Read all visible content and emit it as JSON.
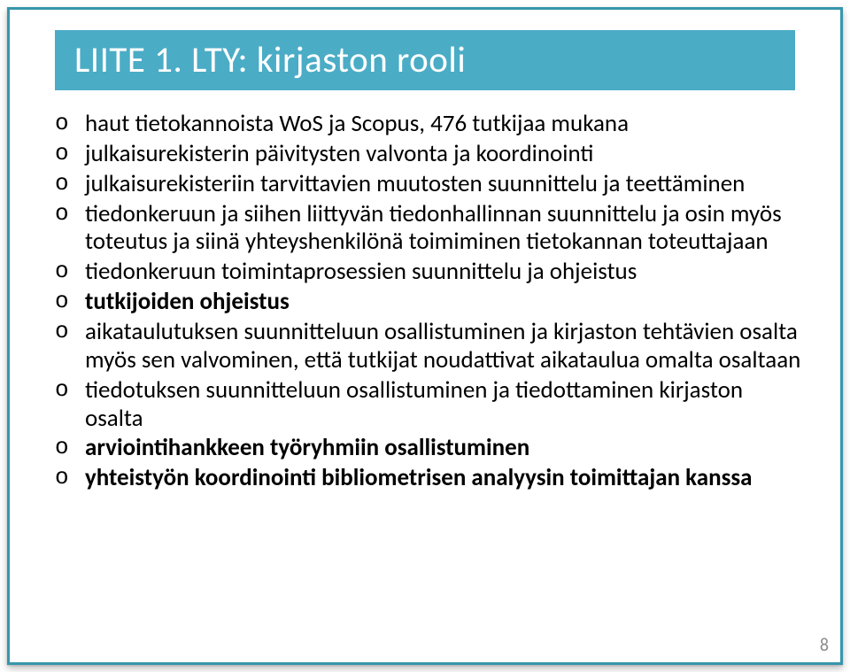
{
  "title": "LIITE 1. LTY: kirjaston rooli",
  "bullets": [
    {
      "text": "haut tietokannoista WoS ja Scopus, 476 tutkijaa mukana",
      "bold": false
    },
    {
      "text": "julkaisurekisterin päivitysten valvonta ja koordinointi",
      "bold": false
    },
    {
      "text": "julkaisurekisteriin tarvittavien muutosten suunnittelu ja teettäminen",
      "bold": false
    },
    {
      "text": "tiedonkeruun ja siihen liittyvän tiedonhallinnan suunnittelu ja osin myös toteutus ja siinä yhteyshenkilönä toimiminen tietokannan toteuttajaan",
      "bold": false
    },
    {
      "text": "tiedonkeruun toimintaprosessien suunnittelu ja ohjeistus",
      "bold": false
    },
    {
      "text": "tutkijoiden ohjeistus",
      "bold": true
    },
    {
      "text": "aikataulutuksen suunnitteluun osallistuminen ja kirjaston tehtävien osalta myös sen valvominen, että tutkijat noudattivat aikataulua omalta osaltaan",
      "bold": false
    },
    {
      "text": "tiedotuksen suunnitteluun osallistuminen ja tiedottaminen kirjaston osalta",
      "bold": false
    },
    {
      "text": "arviointihankkeen työryhmiin osallistuminen",
      "bold": true
    },
    {
      "text": "yhteistyön koordinointi bibliometrisen analyysin toimittajan kanssa",
      "bold": true
    }
  ],
  "page_number": "8",
  "colors": {
    "title_bar_bg": "#4bacc6",
    "title_text": "#ffffff",
    "border_color": "#3796ab",
    "body_text": "#000000",
    "page_num_color": "#8c8c8c",
    "background": "#ffffff"
  }
}
